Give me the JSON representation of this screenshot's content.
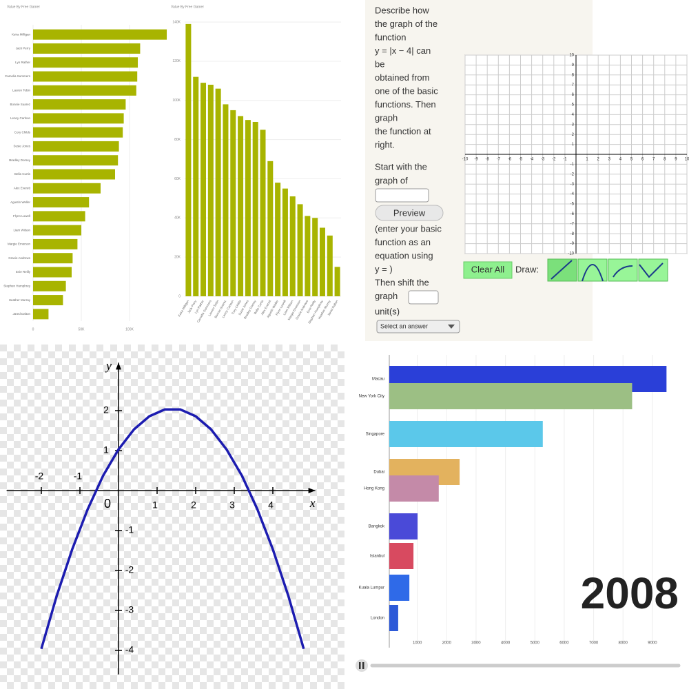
{
  "chart_data": [
    {
      "type": "bar",
      "orientation": "horizontal",
      "title": "Value By Free Gamer",
      "categories": [
        "Keira Milligan",
        "Jack Perry",
        "Lyn Rather",
        "Camelia Summers",
        "Lauren Tobin",
        "Bonnie Suarez",
        "Lenny Carlson",
        "Cory Childs",
        "Susie Jones",
        "Bradley Dorsey",
        "Bella Curtis",
        "Alex Everett",
        "Agustin Weller",
        "Flynn Lowell",
        "Liam Wilson",
        "Margie Emerson",
        "Gracie Andrews",
        "Evie Reilly",
        "Stephen Humphrey",
        "Heather Murray",
        "Jared Dalton"
      ],
      "values": [
        138600,
        111000,
        108600,
        108000,
        107000,
        96000,
        94000,
        93000,
        89000,
        88000,
        85000,
        70000,
        58000,
        54000,
        50000,
        46000,
        41000,
        40000,
        34000,
        31000,
        16000
      ],
      "color": "#a8b400",
      "xlim": [
        0,
        150000
      ],
      "xticks": [
        0,
        {
          "value": 50000,
          "label": "50K"
        },
        {
          "value": 100000,
          "label": "100K"
        }
      ],
      "grid": true
    },
    {
      "type": "bar",
      "orientation": "vertical",
      "title": "Value By Free Gamer",
      "categories": [
        "Keira Milligan",
        "Jack Perry",
        "Lyn Rather",
        "Camelia Summers",
        "Lauren Tobin",
        "Bonnie Suarez",
        "Lenny Carlson",
        "Cory Childs",
        "Susie Jones",
        "Bradley Dorsey",
        "Bella Curtis",
        "Alex Everett",
        "Agustin Weller",
        "Flynn Lowell",
        "Liam Wilson",
        "Margie Emerson",
        "Gracie Andrews",
        "Evie Reilly",
        "Stephen Humphrey",
        "Heather Murray",
        "Jared Dalton"
      ],
      "values": [
        139000,
        112000,
        109000,
        108000,
        106000,
        98000,
        95000,
        92000,
        90000,
        89000,
        85000,
        69000,
        58000,
        55000,
        51000,
        47000,
        41000,
        40000,
        35000,
        31000,
        15000
      ],
      "color": "#a8b400",
      "ylim": [
        0,
        140000
      ],
      "yticks": [
        0,
        {
          "value": 20000,
          "label": "20K"
        },
        {
          "value": 40000,
          "label": "40K"
        },
        {
          "value": 60000,
          "label": "60K"
        },
        {
          "value": 80000,
          "label": "80K"
        },
        {
          "value": 100000,
          "label": "100K"
        },
        {
          "value": 120000,
          "label": "120K"
        },
        {
          "value": 140000,
          "label": "140K"
        }
      ],
      "grid": true
    },
    {
      "type": "line",
      "xlabel": "x",
      "ylabel": "y",
      "x": [
        -2,
        -1.6,
        -1.2,
        -0.8,
        -0.4,
        0,
        0.4,
        0.8,
        1.2,
        1.6,
        2,
        2.4,
        2.8,
        3.2,
        3.6,
        4,
        4.4,
        4.8
      ],
      "values": [
        -3.96,
        -2.63,
        -1.47,
        -0.47,
        0.37,
        1.03,
        1.53,
        1.86,
        2.03,
        2.03,
        1.86,
        1.53,
        1.03,
        0.37,
        -0.47,
        -1.47,
        -2.63,
        -3.96
      ],
      "color": "#1c1cb0",
      "xlim": [
        -2.9,
        5.1
      ],
      "ylim": [
        -4.6,
        3.2
      ],
      "xticks": [
        -2,
        -1,
        0,
        1,
        2,
        3,
        4
      ],
      "yticks": [
        -4,
        -3,
        -2,
        -1,
        1,
        2
      ]
    },
    {
      "type": "bar",
      "orientation": "horizontal",
      "annotation": "2008",
      "categories": [
        "Macau",
        "New York City",
        "Singapore",
        "Dubai",
        "Hong Kong",
        "Bangkok",
        "Istanbul",
        "Kuala Lumpur",
        "London"
      ],
      "values": [
        9480,
        8310,
        5270,
        2440,
        1730,
        1010,
        870,
        730,
        350
      ],
      "colors": [
        "#2a3fd8",
        "#9cbf84",
        "#5bc8ea",
        "#e3b25e",
        "#c48aa8",
        "#4a4ad8",
        "#d84a60",
        "#2f6ae8",
        "#2d5ad8"
      ],
      "xlim": [
        0,
        9800
      ],
      "xticks": [
        1000,
        2000,
        3000,
        4000,
        5000,
        6000,
        7000,
        8000,
        9000
      ],
      "grid": true
    }
  ],
  "question_panel": {
    "prompt_lines": [
      "Describe how",
      "the graph of the",
      "function",
      "y = |x − 4| can",
      "be",
      "obtained from",
      "one of the basic",
      "functions. Then",
      "graph",
      "the function at",
      "right."
    ],
    "start_lines": [
      "Start with the",
      "graph of"
    ],
    "preview_button": "Preview",
    "hint_lines": [
      "(enter your basic",
      "function as an",
      "equation using",
      "y = )"
    ],
    "shift_lines": [
      "Then shift the",
      "graph"
    ],
    "unit_label": "unit(s)",
    "select_placeholder": "Select an answer",
    "clear_button": "Clear All",
    "draw_label": "Draw:",
    "graph": {
      "xlim": [
        -10,
        10
      ],
      "ylim": [
        -10,
        10
      ],
      "xticks": [
        -10,
        -9,
        -8,
        -7,
        -6,
        -5,
        -4,
        -3,
        -2,
        -1,
        1,
        2,
        3,
        4,
        5,
        6,
        7,
        8,
        9,
        10
      ],
      "yticks": [
        -10,
        -9,
        -8,
        -7,
        -6,
        -5,
        -4,
        -3,
        -2,
        -1,
        1,
        2,
        3,
        4,
        5,
        6,
        7,
        8,
        9,
        10
      ]
    }
  }
}
